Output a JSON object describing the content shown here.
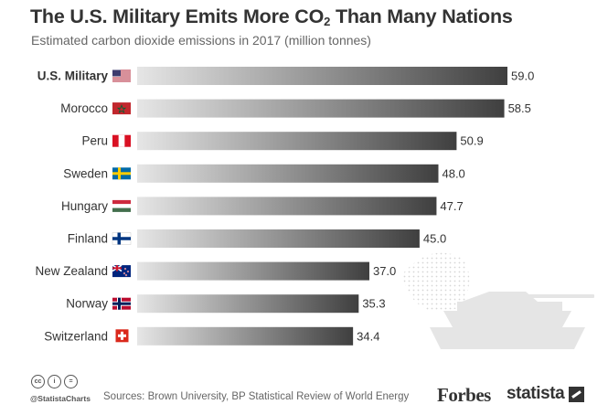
{
  "header": {
    "title_main": "The U.S. Military Emits More CO",
    "title_sub": "2",
    "title_end": " Than Many Nations",
    "subtitle": "Estimated carbon dioxide emissions in 2017 (million tonnes)"
  },
  "chart_data": {
    "type": "bar",
    "orientation": "horizontal",
    "title": "The U.S. Military Emits More CO2 Than Many Nations",
    "subtitle": "Estimated carbon dioxide emissions in 2017 (million tonnes)",
    "categories": [
      "U.S. Military",
      "Morocco",
      "Peru",
      "Sweden",
      "Hungary",
      "Finland",
      "New Zealand",
      "Norway",
      "Switzerland"
    ],
    "values": [
      59.0,
      58.5,
      50.9,
      48.0,
      47.7,
      45.0,
      37.0,
      35.3,
      34.4
    ],
    "value_labels": [
      "59.0",
      "58.5",
      "50.9",
      "48.0",
      "47.7",
      "45.0",
      "37.0",
      "35.3",
      "34.4"
    ],
    "flags": [
      "usa-flag-icon",
      "morocco-flag-icon",
      "peru-flag-icon",
      "sweden-flag-icon",
      "hungary-flag-icon",
      "finland-flag-icon",
      "new-zealand-flag-icon",
      "norway-flag-icon",
      "switzerland-flag-icon"
    ],
    "xlim": [
      0,
      59.0
    ],
    "grid": false,
    "bar_gradient": [
      "#e6e6e6",
      "#3f3f3f"
    ]
  },
  "footer": {
    "license_icons": [
      "cc",
      "i",
      "="
    ],
    "handle": "@StatistaCharts",
    "source": "Sources: Brown University, BP Statistical Review of World Energy",
    "brand_forbes": "Forbes",
    "brand_statista": "statista"
  }
}
